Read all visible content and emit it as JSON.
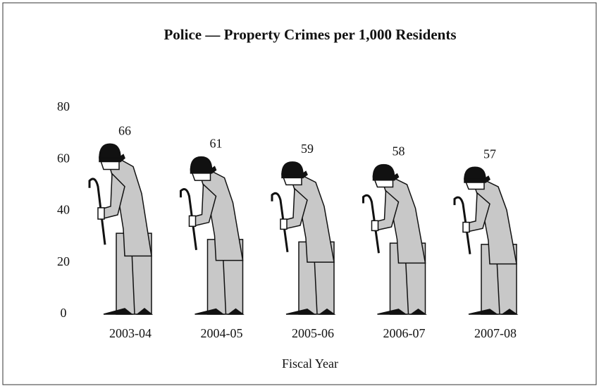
{
  "chart_data": {
    "type": "pictograph",
    "title": "Police — Property Crimes per 1,000 Residents",
    "categories": [
      "2003-04",
      "2004-05",
      "2005-06",
      "2006-07",
      "2007-08"
    ],
    "values": [
      66,
      61,
      59,
      58,
      57
    ],
    "color": "#c8c8c8",
    "x_label": "Fiscal Year",
    "ylim": [
      0,
      80
    ],
    "yticks": [
      0,
      20,
      40,
      60,
      80
    ],
    "grid": false
  }
}
